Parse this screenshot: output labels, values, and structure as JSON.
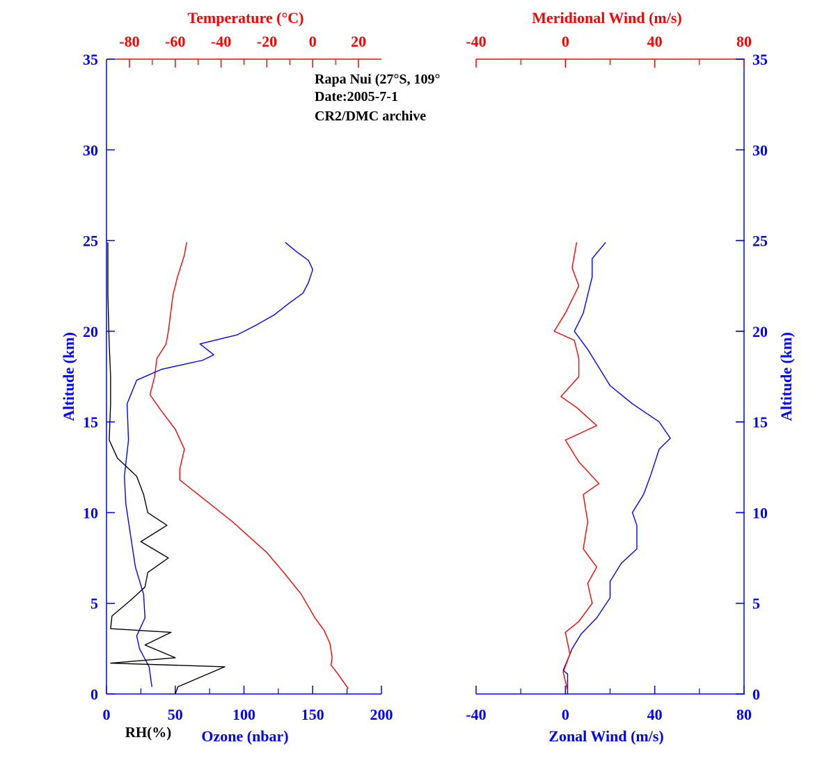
{
  "colors": {
    "blue": "#0000ff",
    "red": "#ff0000",
    "black": "#000000"
  },
  "annotation": {
    "station": "Rapa Nui (27°S, 109°",
    "date": "Date:2005-7-1",
    "archive": "CR2/DMC archive"
  },
  "chart_data": [
    {
      "type": "line",
      "panel": "left",
      "y_axis": {
        "label": "Altitude (km)",
        "range": [
          0,
          35
        ],
        "ticks": [
          "0",
          "5",
          "10",
          "15",
          "20",
          "25",
          "30",
          "35"
        ]
      },
      "bottom_axis": {
        "label": "Ozone (nbar)",
        "extra_label": "RH(%)",
        "range": [
          0,
          200
        ],
        "ticks": [
          "0",
          "50",
          "100",
          "150",
          "200"
        ]
      },
      "top_axis": {
        "label": "Temperature (°C)",
        "range": [
          -90,
          30
        ],
        "ticks": [
          "-80",
          "-60",
          "-40",
          "-20",
          "0",
          "20"
        ]
      },
      "series": [
        {
          "name": "Temperature",
          "color": "red",
          "axis": "top",
          "points": [
            [
              15.5,
              0.3
            ],
            [
              11,
              1.1
            ],
            [
              8,
              1.6
            ],
            [
              8.5,
              2.0
            ],
            [
              7.5,
              2.8
            ],
            [
              5,
              3.5
            ],
            [
              1,
              4.2
            ],
            [
              -5,
              5.5
            ],
            [
              -12,
              6.6
            ],
            [
              -20,
              7.8
            ],
            [
              -35,
              9.5
            ],
            [
              -48,
              10.8
            ],
            [
              -58,
              11.8
            ],
            [
              -58,
              12.4
            ],
            [
              -56,
              13.5
            ],
            [
              -60,
              14.6
            ],
            [
              -66,
              15.6
            ],
            [
              -71,
              16.5
            ],
            [
              -69,
              17.5
            ],
            [
              -68,
              18.5
            ],
            [
              -64,
              19.3
            ],
            [
              -63,
              20.0
            ],
            [
              -62,
              21.0
            ],
            [
              -61,
              22.0
            ],
            [
              -59,
              23.0
            ],
            [
              -56,
              24.2
            ],
            [
              -55,
              24.9
            ]
          ]
        },
        {
          "name": "Ozone",
          "color": "blue",
          "axis": "bottom",
          "points": [
            [
              33,
              0.4
            ],
            [
              31,
              1.5
            ],
            [
              24,
              2.5
            ],
            [
              22,
              3.2
            ],
            [
              28,
              4.2
            ],
            [
              27,
              5.5
            ],
            [
              21,
              7.0
            ],
            [
              17,
              9.0
            ],
            [
              14,
              10.5
            ],
            [
              13,
              12.0
            ],
            [
              16,
              14.0
            ],
            [
              15,
              16.0
            ],
            [
              22,
              17.3
            ],
            [
              40,
              17.9
            ],
            [
              70,
              18.4
            ],
            [
              78,
              18.7
            ],
            [
              68,
              19.3
            ],
            [
              95,
              19.8
            ],
            [
              108,
              20.3
            ],
            [
              122,
              20.9
            ],
            [
              132,
              21.5
            ],
            [
              143,
              22.1
            ],
            [
              147,
              22.7
            ],
            [
              150,
              23.4
            ],
            [
              147,
              23.9
            ],
            [
              138,
              24.4
            ],
            [
              130,
              24.9
            ]
          ]
        },
        {
          "name": "RH",
          "color": "black",
          "axis": "bottom",
          "points": [
            [
              50,
              0.0
            ],
            [
              52,
              0.4
            ],
            [
              86,
              1.5
            ],
            [
              3,
              1.7
            ],
            [
              50,
              2.0
            ],
            [
              28,
              2.7
            ],
            [
              47,
              3.4
            ],
            [
              3,
              3.6
            ],
            [
              4,
              4.3
            ],
            [
              18,
              5.2
            ],
            [
              28,
              5.9
            ],
            [
              30,
              6.7
            ],
            [
              45,
              7.5
            ],
            [
              25,
              8.4
            ],
            [
              44,
              9.3
            ],
            [
              30,
              10.0
            ],
            [
              27,
              11.0
            ],
            [
              22,
              12.0
            ],
            [
              8,
              13.0
            ],
            [
              2,
              14.0
            ],
            [
              3,
              16.0
            ],
            [
              3,
              17.5
            ],
            [
              2,
              19.3
            ],
            [
              1,
              22.0
            ],
            [
              1,
              24.9
            ]
          ]
        }
      ]
    },
    {
      "type": "line",
      "panel": "right",
      "y_axis": {
        "label": "Altitude (km)",
        "range": [
          0,
          35
        ],
        "ticks": [
          "0",
          "5",
          "10",
          "15",
          "20",
          "25",
          "30",
          "35"
        ]
      },
      "bottom_axis": {
        "label": "Zonal Wind (m/s)",
        "range": [
          -40,
          80
        ],
        "ticks": [
          "-40",
          "0",
          "40",
          "80"
        ]
      },
      "top_axis": {
        "label": "Meridional Wind (m/s)",
        "range": [
          -40,
          80
        ],
        "ticks": [
          "-40",
          "0",
          "40",
          "80"
        ]
      },
      "series": [
        {
          "name": "Zonal Wind",
          "color": "blue",
          "axis": "bottom",
          "points": [
            [
              1,
              0.0
            ],
            [
              1,
              1.1
            ],
            [
              -1,
              1.3
            ],
            [
              3,
              2.5
            ],
            [
              7,
              3.3
            ],
            [
              14,
              4.2
            ],
            [
              20,
              5.3
            ],
            [
              20,
              6.2
            ],
            [
              25,
              7.2
            ],
            [
              32,
              8.0
            ],
            [
              32,
              9.3
            ],
            [
              30,
              10.0
            ],
            [
              35,
              11.0
            ],
            [
              38,
              12.0
            ],
            [
              42,
              13.5
            ],
            [
              47,
              14.1
            ],
            [
              42,
              15.0
            ],
            [
              30,
              16.0
            ],
            [
              20,
              17.0
            ],
            [
              15,
              18.0
            ],
            [
              10,
              19.0
            ],
            [
              4,
              20.0
            ],
            [
              8,
              21.0
            ],
            [
              10,
              22.0
            ],
            [
              12,
              23.0
            ],
            [
              12,
              24.0
            ],
            [
              18,
              24.9
            ]
          ]
        },
        {
          "name": "Meridional Wind",
          "color": "red",
          "axis": "top",
          "points": [
            [
              1,
              0.2
            ],
            [
              -1,
              1.2
            ],
            [
              2,
              2.2
            ],
            [
              0,
              3.4
            ],
            [
              6,
              4.0
            ],
            [
              12,
              5.0
            ],
            [
              10,
              6.1
            ],
            [
              14,
              7.0
            ],
            [
              8,
              8.0
            ],
            [
              10,
              9.5
            ],
            [
              8,
              11.0
            ],
            [
              15,
              11.6
            ],
            [
              6,
              12.8
            ],
            [
              0,
              14.0
            ],
            [
              14,
              14.8
            ],
            [
              5,
              15.8
            ],
            [
              -2,
              16.4
            ],
            [
              6,
              17.5
            ],
            [
              6,
              18.5
            ],
            [
              4,
              19.5
            ],
            [
              -5,
              20.0
            ],
            [
              0,
              21.0
            ],
            [
              6,
              22.5
            ],
            [
              3,
              23.5
            ],
            [
              5,
              24.9
            ]
          ]
        }
      ]
    }
  ]
}
